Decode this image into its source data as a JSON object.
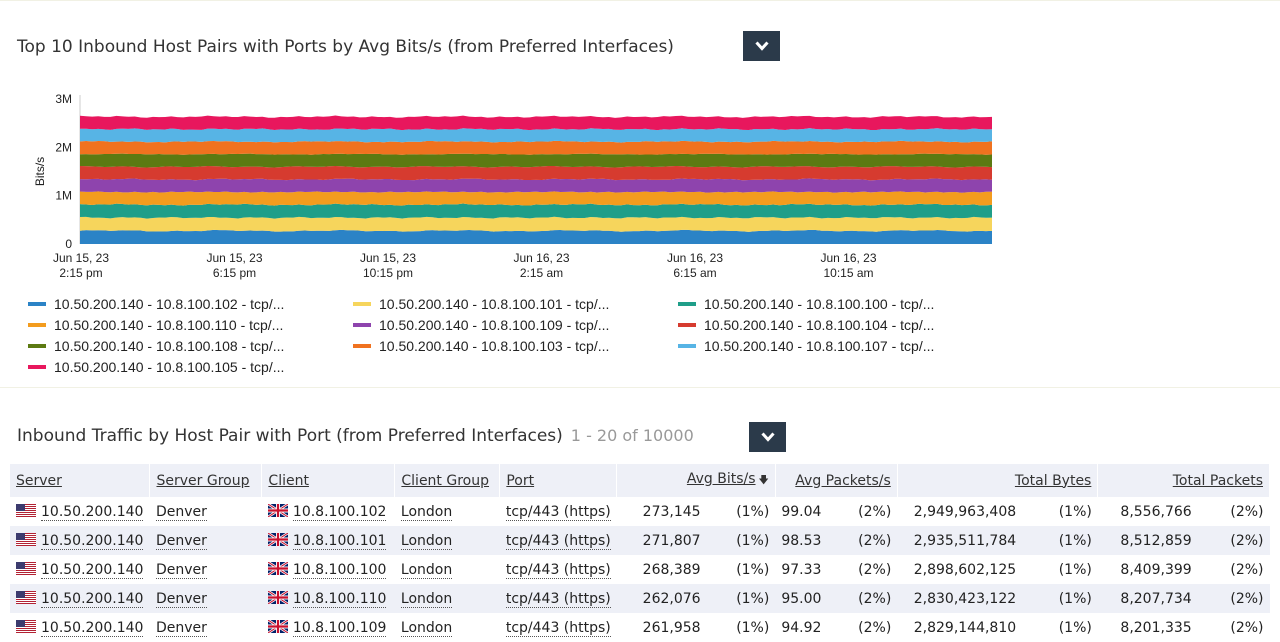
{
  "chart_panel": {
    "title": "Top 10 Inbound Host Pairs with Ports by Avg Bits/s (from Preferred Interfaces)"
  },
  "chart_data": {
    "type": "area",
    "stacked": true,
    "ylabel": "Bits/s",
    "y_ticks": [
      "0",
      "1M",
      "2M",
      "3M"
    ],
    "ylim": [
      0,
      3000000
    ],
    "x_ticks": [
      {
        "date": "Jun 15, 23",
        "time": "2:15 pm"
      },
      {
        "date": "Jun 15, 23",
        "time": "6:15 pm"
      },
      {
        "date": "Jun 15, 23",
        "time": "10:15 pm"
      },
      {
        "date": "Jun 16, 23",
        "time": "2:15 am"
      },
      {
        "date": "Jun 16, 23",
        "time": "6:15 am"
      },
      {
        "date": "Jun 16, 23",
        "time": "10:15 am"
      }
    ],
    "legend_position": "bottom",
    "series": [
      {
        "name": "10.50.200.140 - 10.8.100.102 - tcp/...",
        "color": "#2b83c6",
        "value": 273145
      },
      {
        "name": "10.50.200.140 - 10.8.100.101 - tcp/...",
        "color": "#f6d55c",
        "value": 271807
      },
      {
        "name": "10.50.200.140 - 10.8.100.100 - tcp/...",
        "color": "#1f9e89",
        "value": 268389
      },
      {
        "name": "10.50.200.140 - 10.8.100.110 - tcp/...",
        "color": "#f39c1e",
        "value": 262076
      },
      {
        "name": "10.50.200.140 - 10.8.100.109 - tcp/...",
        "color": "#8e44ad",
        "value": 261958
      },
      {
        "name": "10.50.200.140 - 10.8.100.104 - tcp/...",
        "color": "#d63b2f",
        "value": 261000
      },
      {
        "name": "10.50.200.140 - 10.8.100.108 - tcp/...",
        "color": "#5c7a12",
        "value": 260000
      },
      {
        "name": "10.50.200.140 - 10.8.100.103 - tcp/...",
        "color": "#f0721f",
        "value": 259000
      },
      {
        "name": "10.50.200.140 - 10.8.100.107 - tcp/...",
        "color": "#57b4e5",
        "value": 258000
      },
      {
        "name": "10.50.200.140 - 10.8.100.105 - tcp/...",
        "color": "#e8175d",
        "value": 257000
      }
    ]
  },
  "table_panel": {
    "title": "Inbound Traffic by Host Pair with Port (from Preferred Interfaces)",
    "count": "1 - 20 of 10000",
    "columns": {
      "server": "Server",
      "server_group": "Server Group",
      "client": "Client",
      "client_group": "Client Group",
      "port": "Port",
      "avg_bits": "Avg Bits/s",
      "avg_packets": "Avg Packets/s",
      "total_bytes": "Total Bytes",
      "total_packets": "Total Packets"
    },
    "rows": [
      {
        "server": "10.50.200.140",
        "server_group": "Denver",
        "client": "10.8.100.102",
        "client_group": "London",
        "port": "tcp/443 (https)",
        "avg_bits": "273,145",
        "avg_bits_pct": "(1%)",
        "avg_packets": "99.04",
        "avg_packets_pct": "(2%)",
        "total_bytes": "2,949,963,408",
        "total_bytes_pct": "(1%)",
        "total_packets": "8,556,766",
        "total_packets_pct": "(2%)"
      },
      {
        "server": "10.50.200.140",
        "server_group": "Denver",
        "client": "10.8.100.101",
        "client_group": "London",
        "port": "tcp/443 (https)",
        "avg_bits": "271,807",
        "avg_bits_pct": "(1%)",
        "avg_packets": "98.53",
        "avg_packets_pct": "(2%)",
        "total_bytes": "2,935,511,784",
        "total_bytes_pct": "(1%)",
        "total_packets": "8,512,859",
        "total_packets_pct": "(2%)"
      },
      {
        "server": "10.50.200.140",
        "server_group": "Denver",
        "client": "10.8.100.100",
        "client_group": "London",
        "port": "tcp/443 (https)",
        "avg_bits": "268,389",
        "avg_bits_pct": "(1%)",
        "avg_packets": "97.33",
        "avg_packets_pct": "(2%)",
        "total_bytes": "2,898,602,125",
        "total_bytes_pct": "(1%)",
        "total_packets": "8,409,399",
        "total_packets_pct": "(2%)"
      },
      {
        "server": "10.50.200.140",
        "server_group": "Denver",
        "client": "10.8.100.110",
        "client_group": "London",
        "port": "tcp/443 (https)",
        "avg_bits": "262,076",
        "avg_bits_pct": "(1%)",
        "avg_packets": "95.00",
        "avg_packets_pct": "(2%)",
        "total_bytes": "2,830,423,122",
        "total_bytes_pct": "(1%)",
        "total_packets": "8,207,734",
        "total_packets_pct": "(2%)"
      },
      {
        "server": "10.50.200.140",
        "server_group": "Denver",
        "client": "10.8.100.109",
        "client_group": "London",
        "port": "tcp/443 (https)",
        "avg_bits": "261,958",
        "avg_bits_pct": "(1%)",
        "avg_packets": "94.92",
        "avg_packets_pct": "(2%)",
        "total_bytes": "2,829,144,810",
        "total_bytes_pct": "(1%)",
        "total_packets": "8,201,335",
        "total_packets_pct": "(2%)"
      }
    ]
  }
}
